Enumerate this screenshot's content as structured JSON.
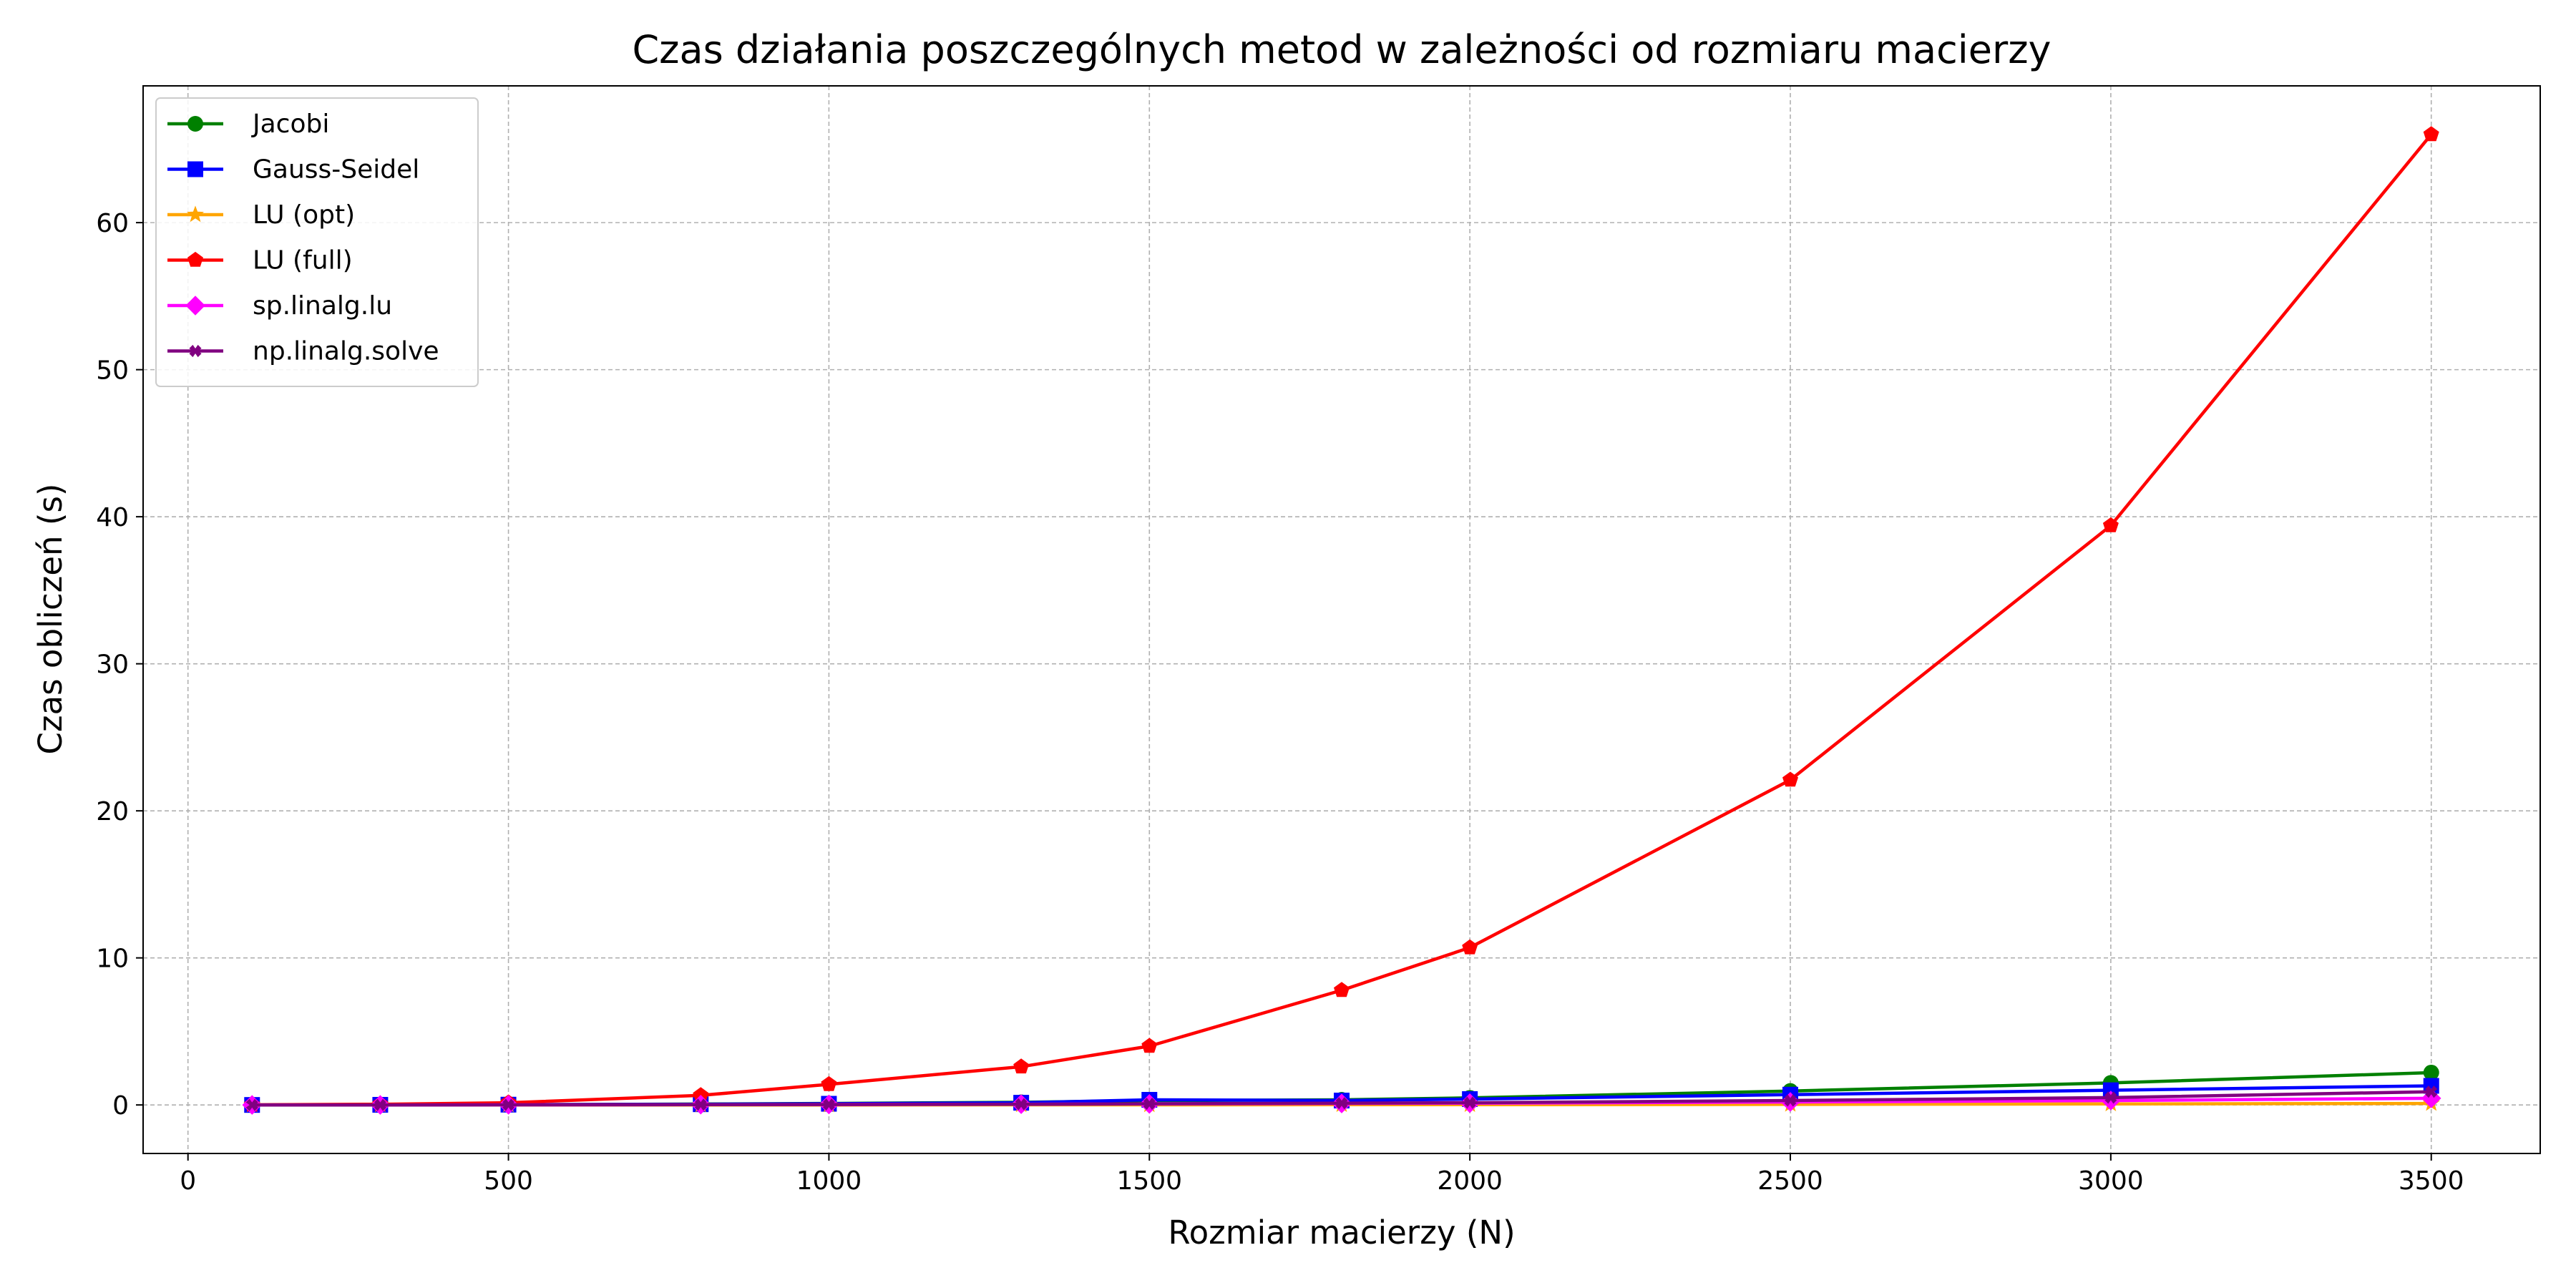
{
  "chart_data": {
    "type": "line",
    "title": "Czas działania poszczególnych metod w zależności od rozmiaru macierzy",
    "xlabel": "Rozmiar macierzy (N)",
    "ylabel": "Czas obliczeń (s)",
    "x": [
      100,
      300,
      500,
      800,
      1000,
      1300,
      1500,
      1800,
      2000,
      2500,
      3000,
      3500
    ],
    "xlim": [
      -70,
      3670
    ],
    "ylim": [
      -3.3,
      69.3
    ],
    "xticks": [
      0,
      500,
      1000,
      1500,
      2000,
      2500,
      3000,
      3500
    ],
    "yticks": [
      0,
      10,
      20,
      30,
      40,
      50,
      60
    ],
    "grid": true,
    "legend_position": "top-left",
    "series": [
      {
        "name": "Jacobi",
        "color": "#008000",
        "marker": "circle",
        "values": [
          0.0,
          0.01,
          0.02,
          0.06,
          0.1,
          0.18,
          0.3,
          0.35,
          0.48,
          0.95,
          1.5,
          2.2
        ]
      },
      {
        "name": "Gauss-Seidel",
        "color": "#0000ff",
        "marker": "square",
        "values": [
          0.0,
          0.01,
          0.02,
          0.05,
          0.08,
          0.15,
          0.35,
          0.3,
          0.4,
          0.7,
          1.0,
          1.3
        ]
      },
      {
        "name": "LU (opt)",
        "color": "#ffa500",
        "marker": "star",
        "values": [
          0.0,
          0.0,
          0.0,
          0.0,
          0.0,
          0.01,
          0.01,
          0.02,
          0.02,
          0.04,
          0.07,
          0.1
        ]
      },
      {
        "name": "LU (full)",
        "color": "#ff0000",
        "marker": "pentagon",
        "values": [
          0.01,
          0.05,
          0.15,
          0.65,
          1.4,
          2.6,
          4.0,
          7.8,
          10.7,
          22.1,
          39.4,
          66.0
        ]
      },
      {
        "name": "sp.linalg.lu",
        "color": "#ff00ff",
        "marker": "diamond",
        "values": [
          0.0,
          0.0,
          0.01,
          0.02,
          0.03,
          0.05,
          0.07,
          0.1,
          0.12,
          0.2,
          0.3,
          0.45
        ]
      },
      {
        "name": "np.linalg.solve",
        "color": "#800080",
        "marker": "x",
        "values": [
          0.0,
          0.0,
          0.01,
          0.02,
          0.03,
          0.05,
          0.08,
          0.12,
          0.15,
          0.3,
          0.5,
          0.9
        ]
      }
    ]
  }
}
